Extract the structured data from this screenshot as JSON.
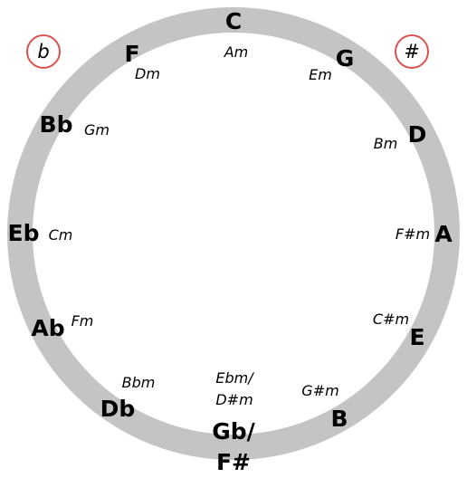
{
  "diagram": {
    "ring_color": "#c4c4c4",
    "badge_color": "#d9534f",
    "flat_badge": {
      "symbol": "b"
    },
    "sharp_badge": {
      "symbol": "#"
    },
    "keys": [
      {
        "major": "C",
        "minor": "Am"
      },
      {
        "major": "G",
        "minor": "Em"
      },
      {
        "major": "D",
        "minor": "Bm"
      },
      {
        "major": "A",
        "minor": "F#m"
      },
      {
        "major": "E",
        "minor": "C#m"
      },
      {
        "major": "B",
        "minor": "G#m"
      },
      {
        "major": "Gb/ F#",
        "minor": "Ebm/ D#m"
      },
      {
        "major": "Db",
        "minor": "Bbm"
      },
      {
        "major": "Ab",
        "minor": "Fm"
      },
      {
        "major": "Eb",
        "minor": "Cm"
      },
      {
        "major": "Bb",
        "minor": "Gm"
      },
      {
        "major": "F",
        "minor": "Dm"
      }
    ]
  }
}
